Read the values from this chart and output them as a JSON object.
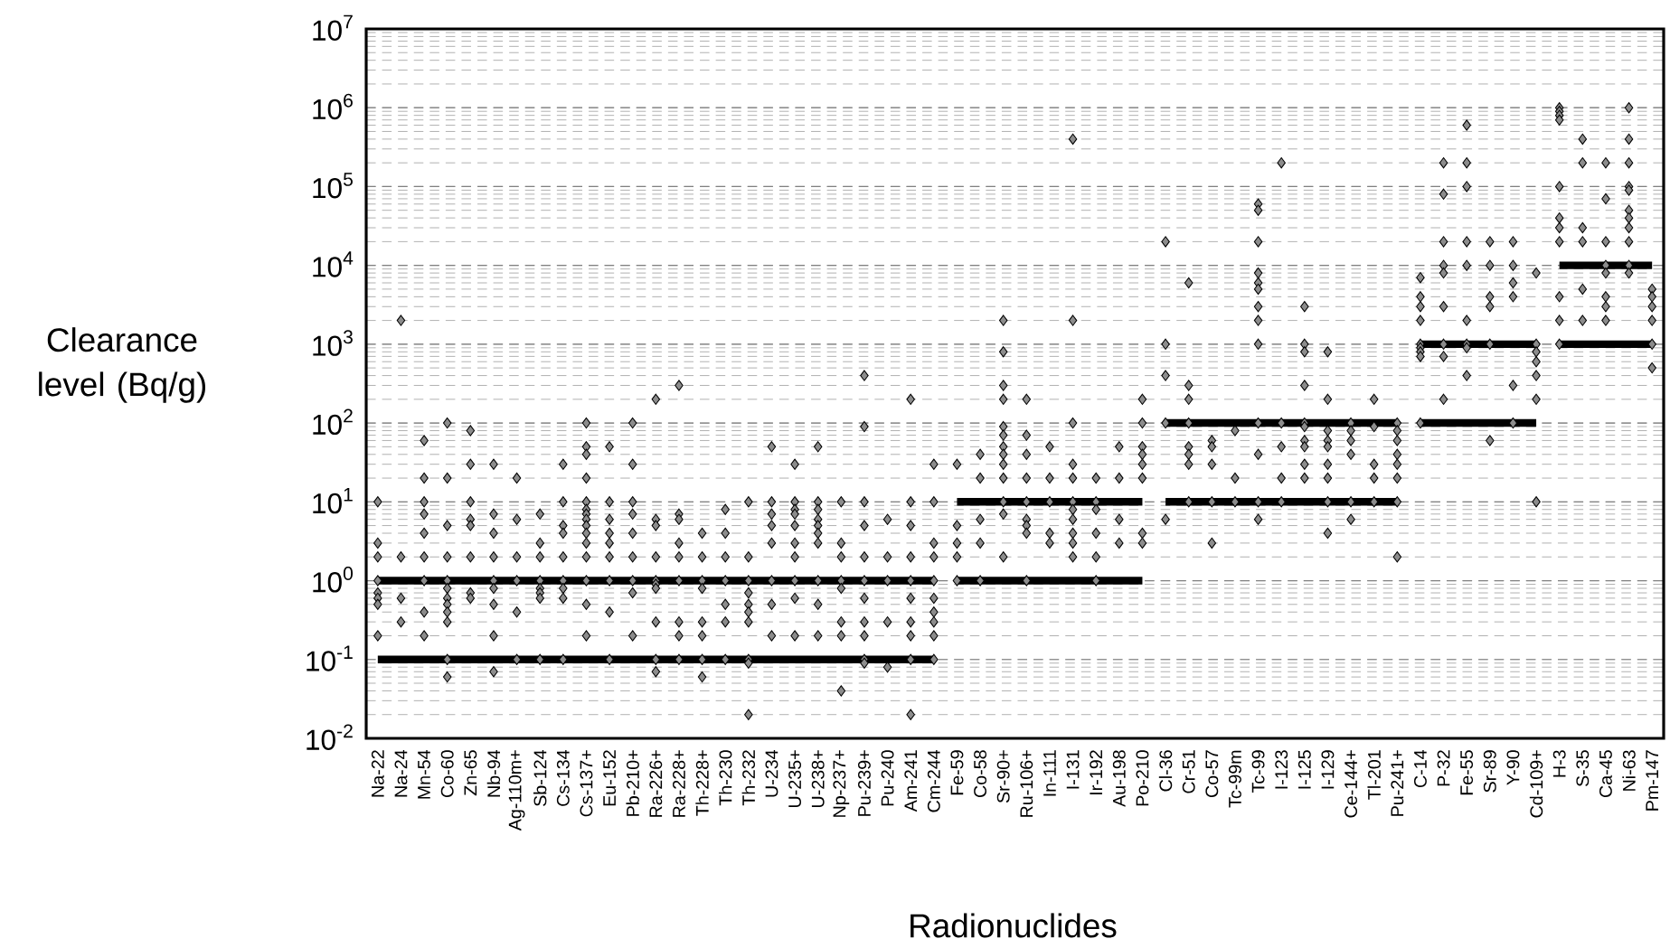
{
  "chart_data": {
    "type": "scatter",
    "xlabel": "Radionuclides",
    "ylabel": "Clearance level (Bq/g)",
    "log": "y",
    "grid": "y",
    "ylim": [
      0.01,
      10000000
    ],
    "yticks": [
      {
        "value": 0.01,
        "label": "10$^{-2}$"
      },
      {
        "value": 0.1,
        "label": "10$^{-1}$"
      },
      {
        "value": 1,
        "label": "10$^{0}$"
      },
      {
        "value": 10,
        "label": "10$^{1}$"
      },
      {
        "value": 100,
        "label": "10$^{2}$"
      },
      {
        "value": 1000,
        "label": "10$^{3}$"
      },
      {
        "value": 10000,
        "label": "10$^{4}$"
      },
      {
        "value": 100000,
        "label": "10$^{5}$"
      },
      {
        "value": 1000000,
        "label": "10$^{6}$"
      },
      {
        "value": 10000000,
        "label": "10$^{7}$"
      }
    ],
    "categories": [
      "Na-22",
      "Na-24",
      "Mn-54",
      "Co-60",
      "Zn-65",
      "Nb-94",
      "Ag-110m+",
      "Sb-124",
      "Cs-134",
      "Cs-137+",
      "Eu-152",
      "Pb-210+",
      "Ra-226+",
      "Ra-228+",
      "Th-228+",
      "Th-230",
      "Th-232",
      "U-234",
      "U-235+",
      "U-238+",
      "Np-237+",
      "Pu-239+",
      "Pu-240",
      "Am-241",
      "Cm-244",
      "Fe-59",
      "Co-58",
      "Sr-90+",
      "Ru-106+",
      "In-111",
      "I-131",
      "Ir-192",
      "Au-198",
      "Po-210",
      "Cl-36",
      "Cr-51",
      "Co-57",
      "Tc-99m",
      "Tc-99",
      "I-123",
      "I-125",
      "I-129",
      "Ce-144+",
      "Tl-201",
      "Pu-241+",
      "C-14",
      "P-32",
      "Fe-55",
      "Sr-89",
      "Y-90",
      "Cd-109+",
      "H-3",
      "S-35",
      "Ca-45",
      "Ni-63",
      "Pm-147"
    ],
    "series": [
      {
        "type": "scatter",
        "marker": "diamond",
        "color": "#8c8c8c",
        "x": [
          "Na-22",
          "Na-22",
          "Na-22",
          "Na-22",
          "Na-22",
          "Na-22",
          "Na-22",
          "Na-22",
          "Na-24",
          "Na-24",
          "Na-24",
          "Na-24",
          "Mn-54",
          "Mn-54",
          "Mn-54",
          "Mn-54",
          "Mn-54",
          "Mn-54",
          "Mn-54",
          "Mn-54",
          "Mn-54",
          "Co-60",
          "Co-60",
          "Co-60",
          "Co-60",
          "Co-60",
          "Co-60",
          "Co-60",
          "Co-60",
          "Co-60",
          "Co-60",
          "Co-60",
          "Co-60",
          "Zn-65",
          "Zn-65",
          "Zn-65",
          "Zn-65",
          "Zn-65",
          "Zn-65",
          "Zn-65",
          "Zn-65",
          "Nb-94",
          "Nb-94",
          "Nb-94",
          "Nb-94",
          "Nb-94",
          "Nb-94",
          "Nb-94",
          "Nb-94",
          "Nb-94",
          "Ag-110m+",
          "Ag-110m+",
          "Ag-110m+",
          "Ag-110m+",
          "Ag-110m+",
          "Ag-110m+",
          "Sb-124",
          "Sb-124",
          "Sb-124",
          "Sb-124",
          "Sb-124",
          "Sb-124",
          "Sb-124",
          "Sb-124",
          "Cs-134",
          "Cs-134",
          "Cs-134",
          "Cs-134",
          "Cs-134",
          "Cs-134",
          "Cs-134",
          "Cs-134",
          "Cs-134",
          "Cs-137+",
          "Cs-137+",
          "Cs-137+",
          "Cs-137+",
          "Cs-137+",
          "Cs-137+",
          "Cs-137+",
          "Cs-137+",
          "Cs-137+",
          "Cs-137+",
          "Cs-137+",
          "Cs-137+",
          "Cs-137+",
          "Cs-137+",
          "Cs-137+",
          "Eu-152",
          "Eu-152",
          "Eu-152",
          "Eu-152",
          "Eu-152",
          "Eu-152",
          "Eu-152",
          "Eu-152",
          "Eu-152",
          "Pb-210+",
          "Pb-210+",
          "Pb-210+",
          "Pb-210+",
          "Pb-210+",
          "Pb-210+",
          "Pb-210+",
          "Pb-210+",
          "Pb-210+",
          "Ra-226+",
          "Ra-226+",
          "Ra-226+",
          "Ra-226+",
          "Ra-226+",
          "Ra-226+",
          "Ra-226+",
          "Ra-226+",
          "Ra-226+",
          "Ra-226+",
          "Ra-228+",
          "Ra-228+",
          "Ra-228+",
          "Ra-228+",
          "Ra-228+",
          "Ra-228+",
          "Ra-228+",
          "Ra-228+",
          "Ra-228+",
          "Th-228+",
          "Th-228+",
          "Th-228+",
          "Th-228+",
          "Th-228+",
          "Th-228+",
          "Th-228+",
          "Th-228+",
          "Th-230",
          "Th-230",
          "Th-230",
          "Th-230",
          "Th-230",
          "Th-230",
          "Th-230",
          "Th-232",
          "Th-232",
          "Th-232",
          "Th-232",
          "Th-232",
          "Th-232",
          "Th-232",
          "Th-232",
          "Th-232",
          "Th-232",
          "U-234",
          "U-234",
          "U-234",
          "U-234",
          "U-234",
          "U-234",
          "U-234",
          "U-234",
          "U-235+",
          "U-235+",
          "U-235+",
          "U-235+",
          "U-235+",
          "U-235+",
          "U-235+",
          "U-235+",
          "U-235+",
          "U-235+",
          "U-238+",
          "U-238+",
          "U-238+",
          "U-238+",
          "U-238+",
          "U-238+",
          "U-238+",
          "U-238+",
          "U-238+",
          "U-238+",
          "Np-237+",
          "Np-237+",
          "Np-237+",
          "Np-237+",
          "Np-237+",
          "Np-237+",
          "Np-237+",
          "Np-237+",
          "Pu-239+",
          "Pu-239+",
          "Pu-239+",
          "Pu-239+",
          "Pu-239+",
          "Pu-239+",
          "Pu-239+",
          "Pu-239+",
          "Pu-239+",
          "Pu-239+",
          "Pu-239+",
          "Pu-240",
          "Pu-240",
          "Pu-240",
          "Pu-240",
          "Pu-240",
          "Am-241",
          "Am-241",
          "Am-241",
          "Am-241",
          "Am-241",
          "Am-241",
          "Am-241",
          "Am-241",
          "Am-241",
          "Am-241",
          "Cm-244",
          "Cm-244",
          "Cm-244",
          "Cm-244",
          "Cm-244",
          "Cm-244",
          "Cm-244",
          "Cm-244",
          "Cm-244",
          "Cm-244",
          "Fe-59",
          "Fe-59",
          "Fe-59",
          "Fe-59",
          "Fe-59",
          "Co-58",
          "Co-58",
          "Co-58",
          "Co-58",
          "Co-58",
          "Sr-90+",
          "Sr-90+",
          "Sr-90+",
          "Sr-90+",
          "Sr-90+",
          "Sr-90+",
          "Sr-90+",
          "Sr-90+",
          "Sr-90+",
          "Sr-90+",
          "Sr-90+",
          "Sr-90+",
          "Sr-90+",
          "Ru-106+",
          "Ru-106+",
          "Ru-106+",
          "Ru-106+",
          "Ru-106+",
          "Ru-106+",
          "Ru-106+",
          "Ru-106+",
          "Ru-106+",
          "In-111",
          "In-111",
          "In-111",
          "In-111",
          "In-111",
          "I-131",
          "I-131",
          "I-131",
          "I-131",
          "I-131",
          "I-131",
          "I-131",
          "I-131",
          "I-131",
          "I-131",
          "I-131",
          "Ir-192",
          "Ir-192",
          "Ir-192",
          "Ir-192",
          "Ir-192",
          "Ir-192",
          "Au-198",
          "Au-198",
          "Au-198",
          "Au-198",
          "Po-210",
          "Po-210",
          "Po-210",
          "Po-210",
          "Po-210",
          "Po-210",
          "Po-210",
          "Po-210",
          "Cl-36",
          "Cl-36",
          "Cl-36",
          "Cl-36",
          "Cl-36",
          "Cr-51",
          "Cr-51",
          "Cr-51",
          "Cr-51",
          "Cr-51",
          "Cr-51",
          "Cr-51",
          "Cr-51",
          "Co-57",
          "Co-57",
          "Co-57",
          "Co-57",
          "Co-57",
          "Tc-99m",
          "Tc-99m",
          "Tc-99m",
          "Tc-99",
          "Tc-99",
          "Tc-99",
          "Tc-99",
          "Tc-99",
          "Tc-99",
          "Tc-99",
          "Tc-99",
          "Tc-99",
          "Tc-99",
          "Tc-99",
          "Tc-99",
          "Tc-99",
          "I-123",
          "I-123",
          "I-123",
          "I-123",
          "I-123",
          "I-125",
          "I-125",
          "I-125",
          "I-125",
          "I-125",
          "I-125",
          "I-125",
          "I-125",
          "I-125",
          "I-125",
          "I-129",
          "I-129",
          "I-129",
          "I-129",
          "I-129",
          "I-129",
          "I-129",
          "I-129",
          "I-129",
          "Ce-144+",
          "Ce-144+",
          "Ce-144+",
          "Ce-144+",
          "Ce-144+",
          "Ce-144+",
          "Tl-201",
          "Tl-201",
          "Tl-201",
          "Tl-201",
          "Tl-201",
          "Pu-241+",
          "Pu-241+",
          "Pu-241+",
          "Pu-241+",
          "Pu-241+",
          "Pu-241+",
          "Pu-241+",
          "Pu-241+",
          "C-14",
          "C-14",
          "C-14",
          "C-14",
          "C-14",
          "C-14",
          "C-14",
          "C-14",
          "C-14",
          "P-32",
          "P-32",
          "P-32",
          "P-32",
          "P-32",
          "P-32",
          "P-32",
          "P-32",
          "P-32",
          "Fe-55",
          "Fe-55",
          "Fe-55",
          "Fe-55",
          "Fe-55",
          "Fe-55",
          "Fe-55",
          "Fe-55",
          "Fe-55",
          "Sr-89",
          "Sr-89",
          "Sr-89",
          "Sr-89",
          "Sr-89",
          "Sr-89",
          "Y-90",
          "Y-90",
          "Y-90",
          "Y-90",
          "Y-90",
          "Y-90",
          "Cd-109+",
          "Cd-109+",
          "Cd-109+",
          "Cd-109+",
          "Cd-109+",
          "Cd-109+",
          "Cd-109+",
          "H-3",
          "H-3",
          "H-3",
          "H-3",
          "H-3",
          "H-3",
          "H-3",
          "H-3",
          "H-3",
          "H-3",
          "H-3",
          "S-35",
          "S-35",
          "S-35",
          "S-35",
          "S-35",
          "S-35",
          "Ca-45",
          "Ca-45",
          "Ca-45",
          "Ca-45",
          "Ca-45",
          "Ca-45",
          "Ca-45",
          "Ca-45",
          "Ni-63",
          "Ni-63",
          "Ni-63",
          "Ni-63",
          "Ni-63",
          "Ni-63",
          "Ni-63",
          "Ni-63",
          "Ni-63",
          "Ni-63",
          "Ni-63",
          "Pm-147",
          "Pm-147",
          "Pm-147",
          "Pm-147",
          "Pm-147",
          "Pm-147"
        ],
        "values": [
          10,
          3,
          2,
          1,
          0.7,
          0.6,
          0.5,
          0.2,
          2000,
          2,
          0.6,
          0.3,
          60,
          20,
          10,
          7,
          4,
          2,
          1,
          0.4,
          0.2,
          100,
          20,
          5,
          2,
          1,
          0.8,
          0.6,
          0.5,
          0.4,
          0.3,
          0.1,
          0.06,
          80,
          30,
          10,
          6,
          5,
          2,
          0.7,
          0.6,
          30,
          7,
          4,
          2,
          1,
          0.8,
          0.5,
          0.2,
          0.07,
          20,
          6,
          2,
          1,
          0.4,
          0.1,
          7,
          3,
          2,
          1,
          0.8,
          0.7,
          0.6,
          0.1,
          30,
          10,
          5,
          4,
          2,
          1,
          0.8,
          0.6,
          0.1,
          100,
          50,
          40,
          20,
          10,
          8,
          7,
          6,
          5,
          4,
          3,
          2,
          1,
          0.5,
          0.2,
          50,
          10,
          6,
          4,
          3,
          2,
          1,
          0.4,
          0.1,
          100,
          30,
          10,
          7,
          4,
          2,
          1,
          0.7,
          0.2,
          200,
          6,
          5,
          2,
          1,
          0.9,
          0.8,
          0.3,
          0.1,
          0.07,
          300,
          7,
          6,
          3,
          2,
          1,
          0.3,
          0.2,
          0.1,
          4,
          2,
          1,
          0.8,
          0.3,
          0.2,
          0.1,
          0.06,
          8,
          4,
          2,
          1,
          0.5,
          0.3,
          0.1,
          10,
          2,
          1,
          0.7,
          0.5,
          0.4,
          0.3,
          0.1,
          0.09,
          0.02,
          50,
          10,
          7,
          5,
          3,
          1,
          0.5,
          0.2,
          30,
          10,
          8,
          7,
          5,
          3,
          2,
          1,
          0.6,
          0.2,
          50,
          10,
          8,
          6,
          5,
          4,
          3,
          1,
          0.5,
          0.2,
          10,
          3,
          2,
          1,
          0.8,
          0.3,
          0.2,
          0.04,
          400,
          90,
          10,
          5,
          2,
          1,
          0.6,
          0.3,
          0.2,
          0.1,
          0.09,
          6,
          2,
          1,
          0.3,
          0.08,
          200,
          10,
          5,
          2,
          1,
          0.6,
          0.3,
          0.2,
          0.1,
          0.02,
          30,
          10,
          3,
          2,
          1,
          0.6,
          0.4,
          0.3,
          0.2,
          0.1,
          30,
          5,
          3,
          2,
          1,
          40,
          20,
          6,
          3,
          1,
          2000,
          800,
          300,
          200,
          90,
          70,
          50,
          40,
          30,
          20,
          10,
          7,
          2,
          200,
          70,
          40,
          20,
          10,
          6,
          5,
          4,
          1,
          50,
          20,
          10,
          4,
          3,
          400000,
          2000,
          100,
          30,
          20,
          10,
          8,
          6,
          4,
          3,
          2,
          20,
          10,
          8,
          4,
          2,
          1,
          50,
          20,
          6,
          3,
          200,
          100,
          50,
          40,
          30,
          20,
          4,
          3,
          20000,
          1000,
          400,
          100,
          6,
          6000,
          300,
          200,
          100,
          50,
          40,
          30,
          10,
          60,
          50,
          30,
          10,
          3,
          80,
          20,
          10,
          60000,
          50000,
          20000,
          8000,
          6000,
          5000,
          3000,
          2000,
          1000,
          100,
          40,
          10,
          6,
          200000,
          100,
          50,
          20,
          10,
          3000,
          1000,
          800,
          300,
          100,
          90,
          60,
          50,
          30,
          20,
          800,
          200,
          80,
          60,
          50,
          30,
          20,
          10,
          4,
          100,
          80,
          60,
          40,
          10,
          6,
          200,
          90,
          30,
          20,
          10,
          100,
          80,
          60,
          40,
          30,
          20,
          10,
          2,
          7000,
          4000,
          3000,
          2000,
          1000,
          900,
          800,
          700,
          100,
          200000,
          80000,
          20000,
          10000,
          8000,
          3000,
          1000,
          700,
          200,
          600000,
          200000,
          100000,
          20000,
          10000,
          2000,
          1000,
          900,
          400,
          20000,
          10000,
          4000,
          3000,
          1000,
          60,
          20000,
          10000,
          6000,
          4000,
          300,
          100,
          8000,
          1000,
          800,
          600,
          400,
          200,
          10,
          1000000,
          900000,
          800000,
          700000,
          100000,
          40000,
          30000,
          20000,
          4000,
          2000,
          1000,
          400000,
          200000,
          30000,
          20000,
          5000,
          2000,
          200000,
          70000,
          20000,
          10000,
          8000,
          4000,
          3000,
          2000,
          1000000,
          400000,
          200000,
          100000,
          90000,
          50000,
          40000,
          30000,
          20000,
          10000,
          8000,
          5000,
          4000,
          3000,
          2000,
          1000,
          500
        ]
      },
      {
        "type": "line",
        "marker": "none",
        "line_style": "solid",
        "color": "#000000",
        "x": [
          "Na-22",
          "Cm-244"
        ],
        "values": [
          1,
          1
        ]
      },
      {
        "type": "line",
        "marker": "none",
        "line_style": "solid",
        "color": "#000000",
        "x": [
          "Na-22",
          "Cm-244"
        ],
        "values": [
          0.1,
          0.1
        ]
      },
      {
        "type": "line",
        "marker": "none",
        "line_style": "solid",
        "color": "#000000",
        "x": [
          "Fe-59",
          "Po-210"
        ],
        "values": [
          10,
          10
        ]
      },
      {
        "type": "line",
        "marker": "none",
        "line_style": "solid",
        "color": "#000000",
        "x": [
          "Fe-59",
          "Po-210"
        ],
        "values": [
          1,
          1
        ]
      },
      {
        "type": "line",
        "marker": "none",
        "line_style": "solid",
        "color": "#000000",
        "x": [
          "Cl-36",
          "Pu-241+"
        ],
        "values": [
          100,
          100
        ]
      },
      {
        "type": "line",
        "marker": "none",
        "line_style": "solid",
        "color": "#000000",
        "x": [
          "Cl-36",
          "Pu-241+"
        ],
        "values": [
          10,
          10
        ]
      },
      {
        "type": "line",
        "marker": "none",
        "line_style": "solid",
        "color": "#000000",
        "x": [
          "C-14",
          "Cd-109+"
        ],
        "values": [
          1000,
          1000
        ]
      },
      {
        "type": "line",
        "marker": "none",
        "line_style": "solid",
        "color": "#000000",
        "x": [
          "C-14",
          "Cd-109+"
        ],
        "values": [
          100,
          100
        ]
      },
      {
        "type": "line",
        "marker": "none",
        "line_style": "solid",
        "color": "#000000",
        "x": [
          "H-3",
          "Pm-147"
        ],
        "values": [
          10000,
          10000
        ]
      },
      {
        "type": "line",
        "line_style": "solid",
        "color": "#000000",
        "x": [
          "H-3",
          "Pm-147"
        ],
        "values": [
          1000,
          1000
        ]
      }
    ]
  }
}
